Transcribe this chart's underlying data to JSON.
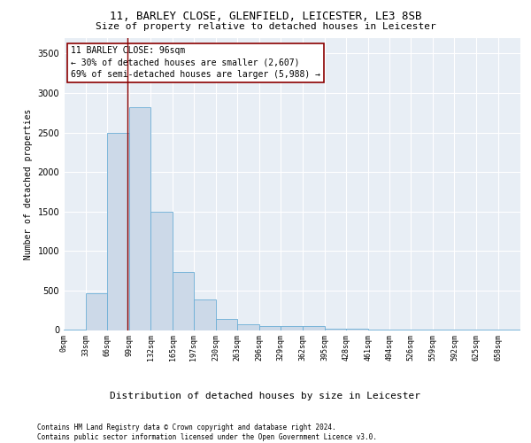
{
  "title1": "11, BARLEY CLOSE, GLENFIELD, LEICESTER, LE3 8SB",
  "title2": "Size of property relative to detached houses in Leicester",
  "xlabel": "Distribution of detached houses by size in Leicester",
  "ylabel": "Number of detached properties",
  "bar_color": "#ccd9e8",
  "bar_edge_color": "#6baed6",
  "background_color": "#e8eef5",
  "vline_x": 96,
  "vline_color": "#8b0000",
  "annotation_text": "11 BARLEY CLOSE: 96sqm\n← 30% of detached houses are smaller (2,607)\n69% of semi-detached houses are larger (5,988) →",
  "annotation_box_color": "white",
  "annotation_box_edge_color": "#8b0000",
  "ylim": [
    0,
    3700
  ],
  "xlim": [
    0,
    692
  ],
  "bin_edges": [
    0,
    33,
    66,
    99,
    132,
    165,
    197,
    230,
    263,
    296,
    329,
    362,
    395,
    428,
    461,
    494,
    526,
    559,
    592,
    625,
    658,
    692
  ],
  "bin_counts": [
    10,
    470,
    2500,
    2820,
    1500,
    740,
    390,
    140,
    70,
    45,
    45,
    55,
    20,
    15,
    10,
    5,
    5,
    5,
    5,
    5,
    5
  ],
  "tick_labels": [
    "0sqm",
    "33sqm",
    "66sqm",
    "99sqm",
    "132sqm",
    "165sqm",
    "197sqm",
    "230sqm",
    "263sqm",
    "296sqm",
    "329sqm",
    "362sqm",
    "395sqm",
    "428sqm",
    "461sqm",
    "494sqm",
    "526sqm",
    "559sqm",
    "592sqm",
    "625sqm",
    "658sqm"
  ],
  "footer_text": "Contains HM Land Registry data © Crown copyright and database right 2024.\nContains public sector information licensed under the Open Government Licence v3.0.",
  "title1_fontsize": 9,
  "title2_fontsize": 8,
  "xlabel_fontsize": 8,
  "ylabel_fontsize": 7,
  "tick_fontsize": 6,
  "annotation_fontsize": 7,
  "footer_fontsize": 5.5
}
